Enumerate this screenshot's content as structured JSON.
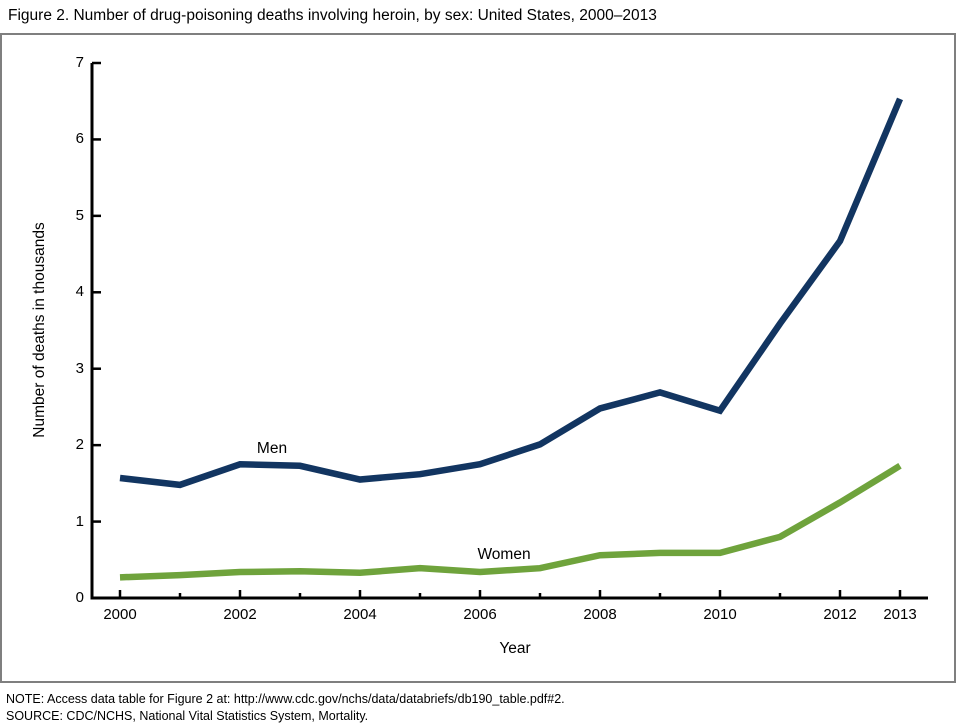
{
  "title": "Figure 2. Number of drug-poisoning deaths involving heroin, by sex: United States, 2000–2013",
  "note": "NOTE: Access data table for Figure 2 at: http://www.cdc.gov/nchs/data/databriefs/db190_table.pdf#2.",
  "source": "SOURCE: CDC/NCHS, National Vital Statistics System, Mortality.",
  "colors": {
    "men_line": "#123561",
    "women_line": "#6fa33c",
    "axis": "#000000",
    "frame_border": "#7f7f7f",
    "background": "#ffffff"
  },
  "chart_data": {
    "type": "line",
    "title": "Figure 2. Number of drug-poisoning deaths involving heroin, by sex: United States, 2000–2013",
    "xlabel": "Year",
    "ylabel": "Number of deaths in thousands",
    "x": [
      2000,
      2001,
      2002,
      2003,
      2004,
      2005,
      2006,
      2007,
      2008,
      2009,
      2010,
      2011,
      2012,
      2013
    ],
    "x_tick_labels": [
      "2000",
      "2002",
      "2004",
      "2006",
      "2008",
      "2010",
      "2012",
      "2013"
    ],
    "y_ticks": [
      0,
      1,
      2,
      3,
      4,
      5,
      6,
      7
    ],
    "ylim": [
      0,
      7
    ],
    "grid": false,
    "legend_position": "inline-labels-on-chart",
    "series": [
      {
        "name": "Men",
        "color": "#123561",
        "values": [
          1.57,
          1.48,
          1.75,
          1.73,
          1.55,
          1.62,
          1.75,
          2.01,
          2.48,
          2.69,
          2.45,
          3.59,
          4.67,
          6.53
        ]
      },
      {
        "name": "Women",
        "color": "#6fa33c",
        "values": [
          0.27,
          0.3,
          0.34,
          0.35,
          0.33,
          0.39,
          0.34,
          0.39,
          0.56,
          0.59,
          0.59,
          0.8,
          1.25,
          1.73
        ]
      }
    ]
  }
}
